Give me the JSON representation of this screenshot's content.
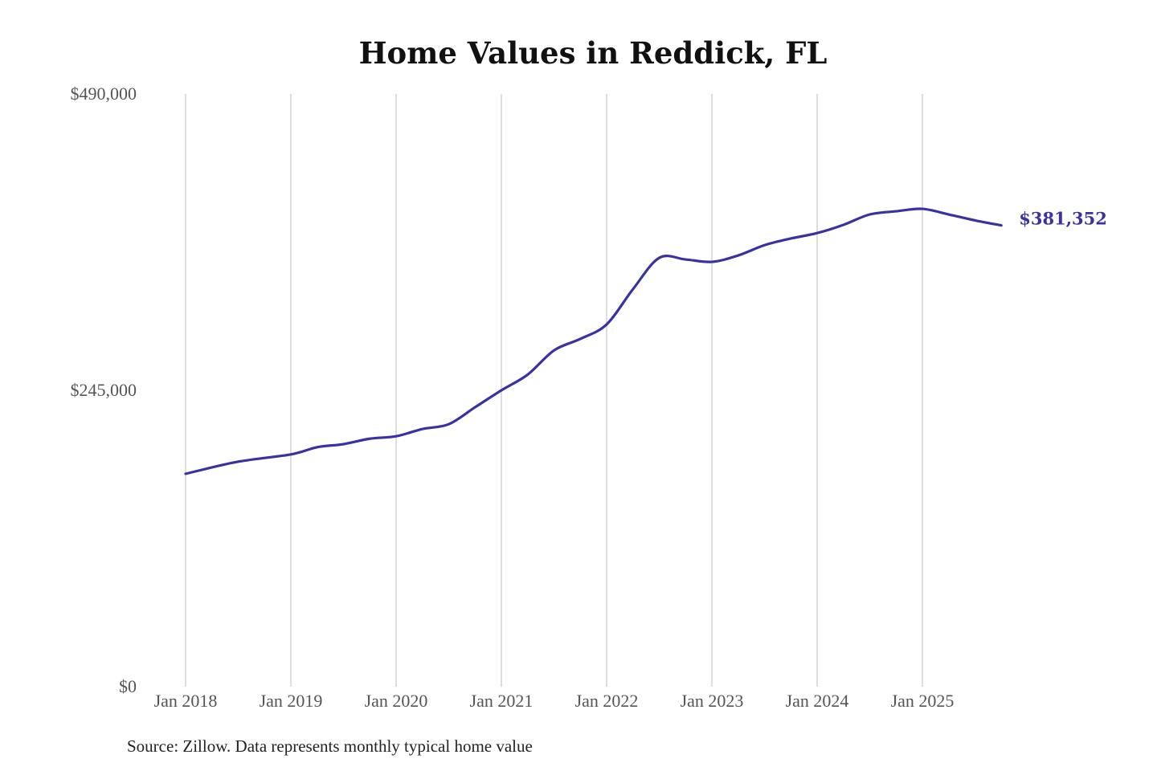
{
  "chart_data": {
    "type": "line",
    "title": "Home Values in Reddick, FL",
    "xlabel": "",
    "ylabel": "",
    "ylim": [
      0,
      490000
    ],
    "y_ticks": [
      "$0",
      "$245,000",
      "$490,000"
    ],
    "y_tick_values": [
      0,
      245000,
      490000
    ],
    "x_ticks": [
      "Jan 2018",
      "Jan 2019",
      "Jan 2020",
      "Jan 2021",
      "Jan 2022",
      "Jan 2023",
      "Jan 2024",
      "Jan 2025"
    ],
    "x_tick_values": [
      "2018-01",
      "2019-01",
      "2020-01",
      "2021-01",
      "2022-01",
      "2023-01",
      "2024-01",
      "2025-01"
    ],
    "grid": "vertical",
    "line_color": "#3a32a0",
    "end_label": "$381,352",
    "series": [
      {
        "x": [
          "2018-01",
          "2018-07",
          "2019-01",
          "2019-04",
          "2019-07",
          "2019-10",
          "2020-01",
          "2020-04",
          "2020-07",
          "2020-10",
          "2021-01",
          "2021-04",
          "2021-07",
          "2021-10",
          "2022-01",
          "2022-04",
          "2022-07",
          "2022-10",
          "2023-01",
          "2023-04",
          "2023-07",
          "2023-10",
          "2024-01",
          "2024-04",
          "2024-07",
          "2024-10",
          "2025-01",
          "2025-04",
          "2025-07",
          "2025-10"
        ],
        "values": [
          176000,
          186000,
          192000,
          198000,
          200500,
          205000,
          207000,
          213000,
          217000,
          231000,
          245000,
          258000,
          278000,
          287500,
          299500,
          328600,
          354500,
          353200,
          351200,
          356500,
          365000,
          370500,
          375000,
          381800,
          390400,
          393000,
          395000,
          390400,
          385500,
          381352
        ]
      }
    ]
  },
  "source": "Source: Zillow. Data represents monthly typical home value"
}
